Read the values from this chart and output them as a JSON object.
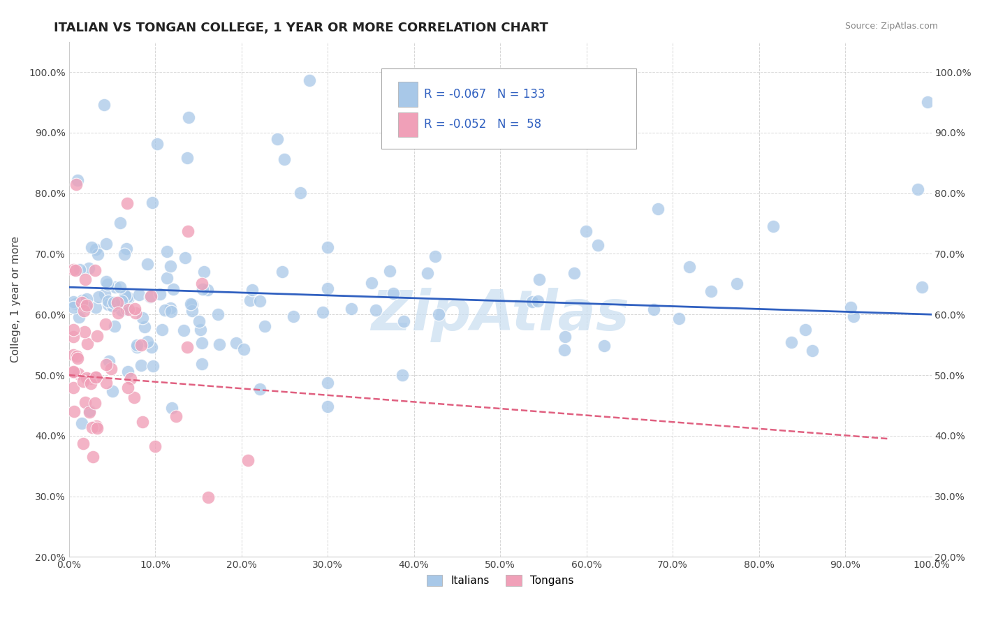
{
  "title": "ITALIAN VS TONGAN COLLEGE, 1 YEAR OR MORE CORRELATION CHART",
  "source": "Source: ZipAtlas.com",
  "ylabel": "College, 1 year or more",
  "xlim": [
    0.0,
    1.0
  ],
  "ylim": [
    0.2,
    1.05
  ],
  "italian_R": -0.067,
  "italian_N": 133,
  "tongan_R": -0.052,
  "tongan_N": 58,
  "italian_color": "#a8c8e8",
  "tongan_color": "#f0a0b8",
  "italian_line_color": "#3060c0",
  "tongan_line_color": "#e06080",
  "background_color": "#ffffff",
  "grid_color": "#cccccc",
  "legend_text_color": "#3060c0",
  "watermark_color": "#c8ddf0",
  "yticks": [
    0.2,
    0.3,
    0.4,
    0.5,
    0.6,
    0.7,
    0.8,
    0.9,
    1.0
  ],
  "ytick_labels": [
    "20.0%",
    "30.0%",
    "40.0%",
    "50.0%",
    "60.0%",
    "70.0%",
    "80.0%",
    "90.0%",
    "100.0%"
  ],
  "xticks": [
    0.0,
    0.1,
    0.2,
    0.3,
    0.4,
    0.5,
    0.6,
    0.7,
    0.8,
    0.9,
    1.0
  ],
  "xtick_labels": [
    "0.0%",
    "10.0%",
    "20.0%",
    "30.0%",
    "40.0%",
    "50.0%",
    "60.0%",
    "70.0%",
    "80.0%",
    "90.0%",
    "100.0%"
  ]
}
